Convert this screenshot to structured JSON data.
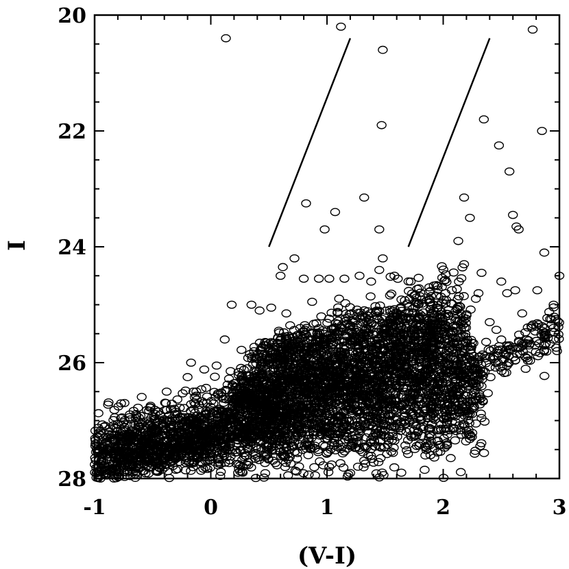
{
  "chart_data": {
    "type": "scatter",
    "title": "",
    "xlabel": "(V-I)",
    "ylabel": "I",
    "xlim": [
      -1,
      3
    ],
    "ylim": [
      28,
      20
    ],
    "y_inverted": true,
    "x_ticks": [
      "-1",
      "0",
      "1",
      "2",
      "3"
    ],
    "y_ticks": [
      "20",
      "22",
      "24",
      "26",
      "28"
    ],
    "marker": "open-circle",
    "grid": false,
    "legend": "none",
    "lines": [
      {
        "x": [
          0.5,
          1.2
        ],
        "y": [
          24.0,
          20.4
        ]
      },
      {
        "x": [
          1.7,
          2.4
        ],
        "y": [
          24.0,
          20.4
        ]
      }
    ],
    "points": [
      [
        0.13,
        20.4
      ],
      [
        1.12,
        20.2
      ],
      [
        1.48,
        20.6
      ],
      [
        2.77,
        20.25
      ],
      [
        1.47,
        21.9
      ],
      [
        2.35,
        21.8
      ],
      [
        2.85,
        22.0
      ],
      [
        2.48,
        22.25
      ],
      [
        2.57,
        22.7
      ],
      [
        0.82,
        23.25
      ],
      [
        1.07,
        23.4
      ],
      [
        1.32,
        23.15
      ],
      [
        2.18,
        23.15
      ],
      [
        2.23,
        23.5
      ],
      [
        0.98,
        23.7
      ],
      [
        1.45,
        23.7
      ],
      [
        2.6,
        23.45
      ],
      [
        2.63,
        23.65
      ],
      [
        2.65,
        23.7
      ],
      [
        1.48,
        24.2
      ],
      [
        2.13,
        23.9
      ],
      [
        2.18,
        24.3
      ],
      [
        2.87,
        24.1
      ],
      [
        0.72,
        24.2
      ],
      [
        0.62,
        24.35
      ],
      [
        0.6,
        24.5
      ],
      [
        0.8,
        24.55
      ],
      [
        0.93,
        24.55
      ],
      [
        1.02,
        24.55
      ],
      [
        1.15,
        24.55
      ],
      [
        1.28,
        24.5
      ],
      [
        1.38,
        24.6
      ],
      [
        1.45,
        24.4
      ],
      [
        1.58,
        24.5
      ],
      [
        1.72,
        24.6
      ],
      [
        1.88,
        24.7
      ],
      [
        2.02,
        24.8
      ],
      [
        2.33,
        24.45
      ],
      [
        2.5,
        24.6
      ],
      [
        2.55,
        24.8
      ],
      [
        2.62,
        24.75
      ],
      [
        2.81,
        24.75
      ],
      [
        3.0,
        24.5
      ],
      [
        2.95,
        25.0
      ],
      [
        0.18,
        25.0
      ],
      [
        0.35,
        25.0
      ],
      [
        0.42,
        25.1
      ],
      [
        0.52,
        25.05
      ],
      [
        0.65,
        25.15
      ],
      [
        2.4,
        25.3
      ],
      [
        2.68,
        25.15
      ],
      [
        2.85,
        25.45
      ],
      [
        2.95,
        25.4
      ],
      [
        2.98,
        25.8
      ],
      [
        2.5,
        25.6
      ],
      [
        2.72,
        25.6
      ],
      [
        0.12,
        25.6
      ],
      [
        -0.17,
        26.0
      ],
      [
        0.05,
        26.05
      ],
      [
        -0.38,
        26.5
      ],
      [
        -0.15,
        26.5
      ],
      [
        -0.72,
        27.25
      ],
      [
        -0.92,
        27.45
      ],
      [
        -0.95,
        28.0
      ],
      [
        -0.97,
        27.95
      ],
      [
        -0.93,
        27.85
      ]
    ],
    "clusters": [
      {
        "cx": [
          -1.0,
          2.3
        ],
        "cy": [
          27.45,
          26.55
        ],
        "spread": [
          0.25,
          0.55
        ],
        "n": 2400
      },
      {
        "cx": [
          0.2,
          2.2
        ],
        "cy": [
          26.6,
          25.7
        ],
        "spread": [
          0.2,
          0.5
        ],
        "n": 1400
      },
      {
        "cx": [
          0.4,
          2.1
        ],
        "cy": [
          25.9,
          25.1
        ],
        "spread": [
          0.15,
          0.35
        ],
        "n": 600
      },
      {
        "cx": [
          -1.0,
          0.6
        ],
        "cy": [
          27.9,
          27.1
        ],
        "spread": [
          0.1,
          0.3
        ],
        "n": 450
      },
      {
        "cx": [
          2.2,
          3.0
        ],
        "cy": [
          26.2,
          25.4
        ],
        "spread": [
          0.15,
          0.25
        ],
        "n": 160
      }
    ]
  }
}
